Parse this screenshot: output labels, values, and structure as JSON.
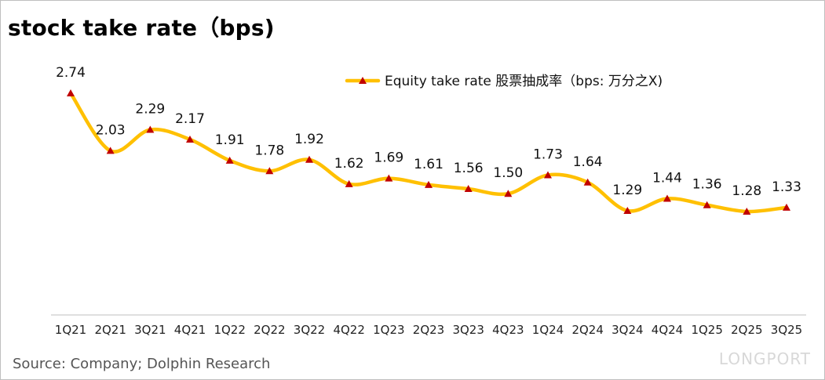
{
  "chart_data": {
    "type": "line",
    "title": "stock take rate（bps)",
    "categories": [
      "1Q21",
      "2Q21",
      "3Q21",
      "4Q21",
      "1Q22",
      "2Q22",
      "3Q22",
      "4Q22",
      "1Q23",
      "2Q23",
      "3Q23",
      "4Q23",
      "1Q24",
      "2Q24",
      "3Q24",
      "4Q24",
      "1Q25",
      "2Q25",
      "3Q25"
    ],
    "series": [
      {
        "name": "Equity take rate 股票抽成率（bps: 万分之X)",
        "values": [
          2.74,
          2.03,
          2.29,
          2.17,
          1.91,
          1.78,
          1.92,
          1.62,
          1.69,
          1.61,
          1.56,
          1.5,
          1.73,
          1.64,
          1.29,
          1.44,
          1.36,
          1.28,
          1.33
        ],
        "labels": [
          "2.74",
          "2.03",
          "2.29",
          "2.17",
          "1.91",
          "1.78",
          "1.92",
          "1.62",
          "1.69",
          "1.61",
          "1.56",
          "1.50",
          "1.73",
          "1.64",
          "1.29",
          "1.44",
          "1.36",
          "1.28",
          "1.33"
        ],
        "line_color": "#FFC000",
        "marker_color": "#C00000"
      }
    ],
    "legend_position": "top-right",
    "grid": false,
    "smooth": true
  },
  "footer": {
    "source": "Source: Company; Dolphin Research",
    "watermark": "LONGPORT"
  }
}
